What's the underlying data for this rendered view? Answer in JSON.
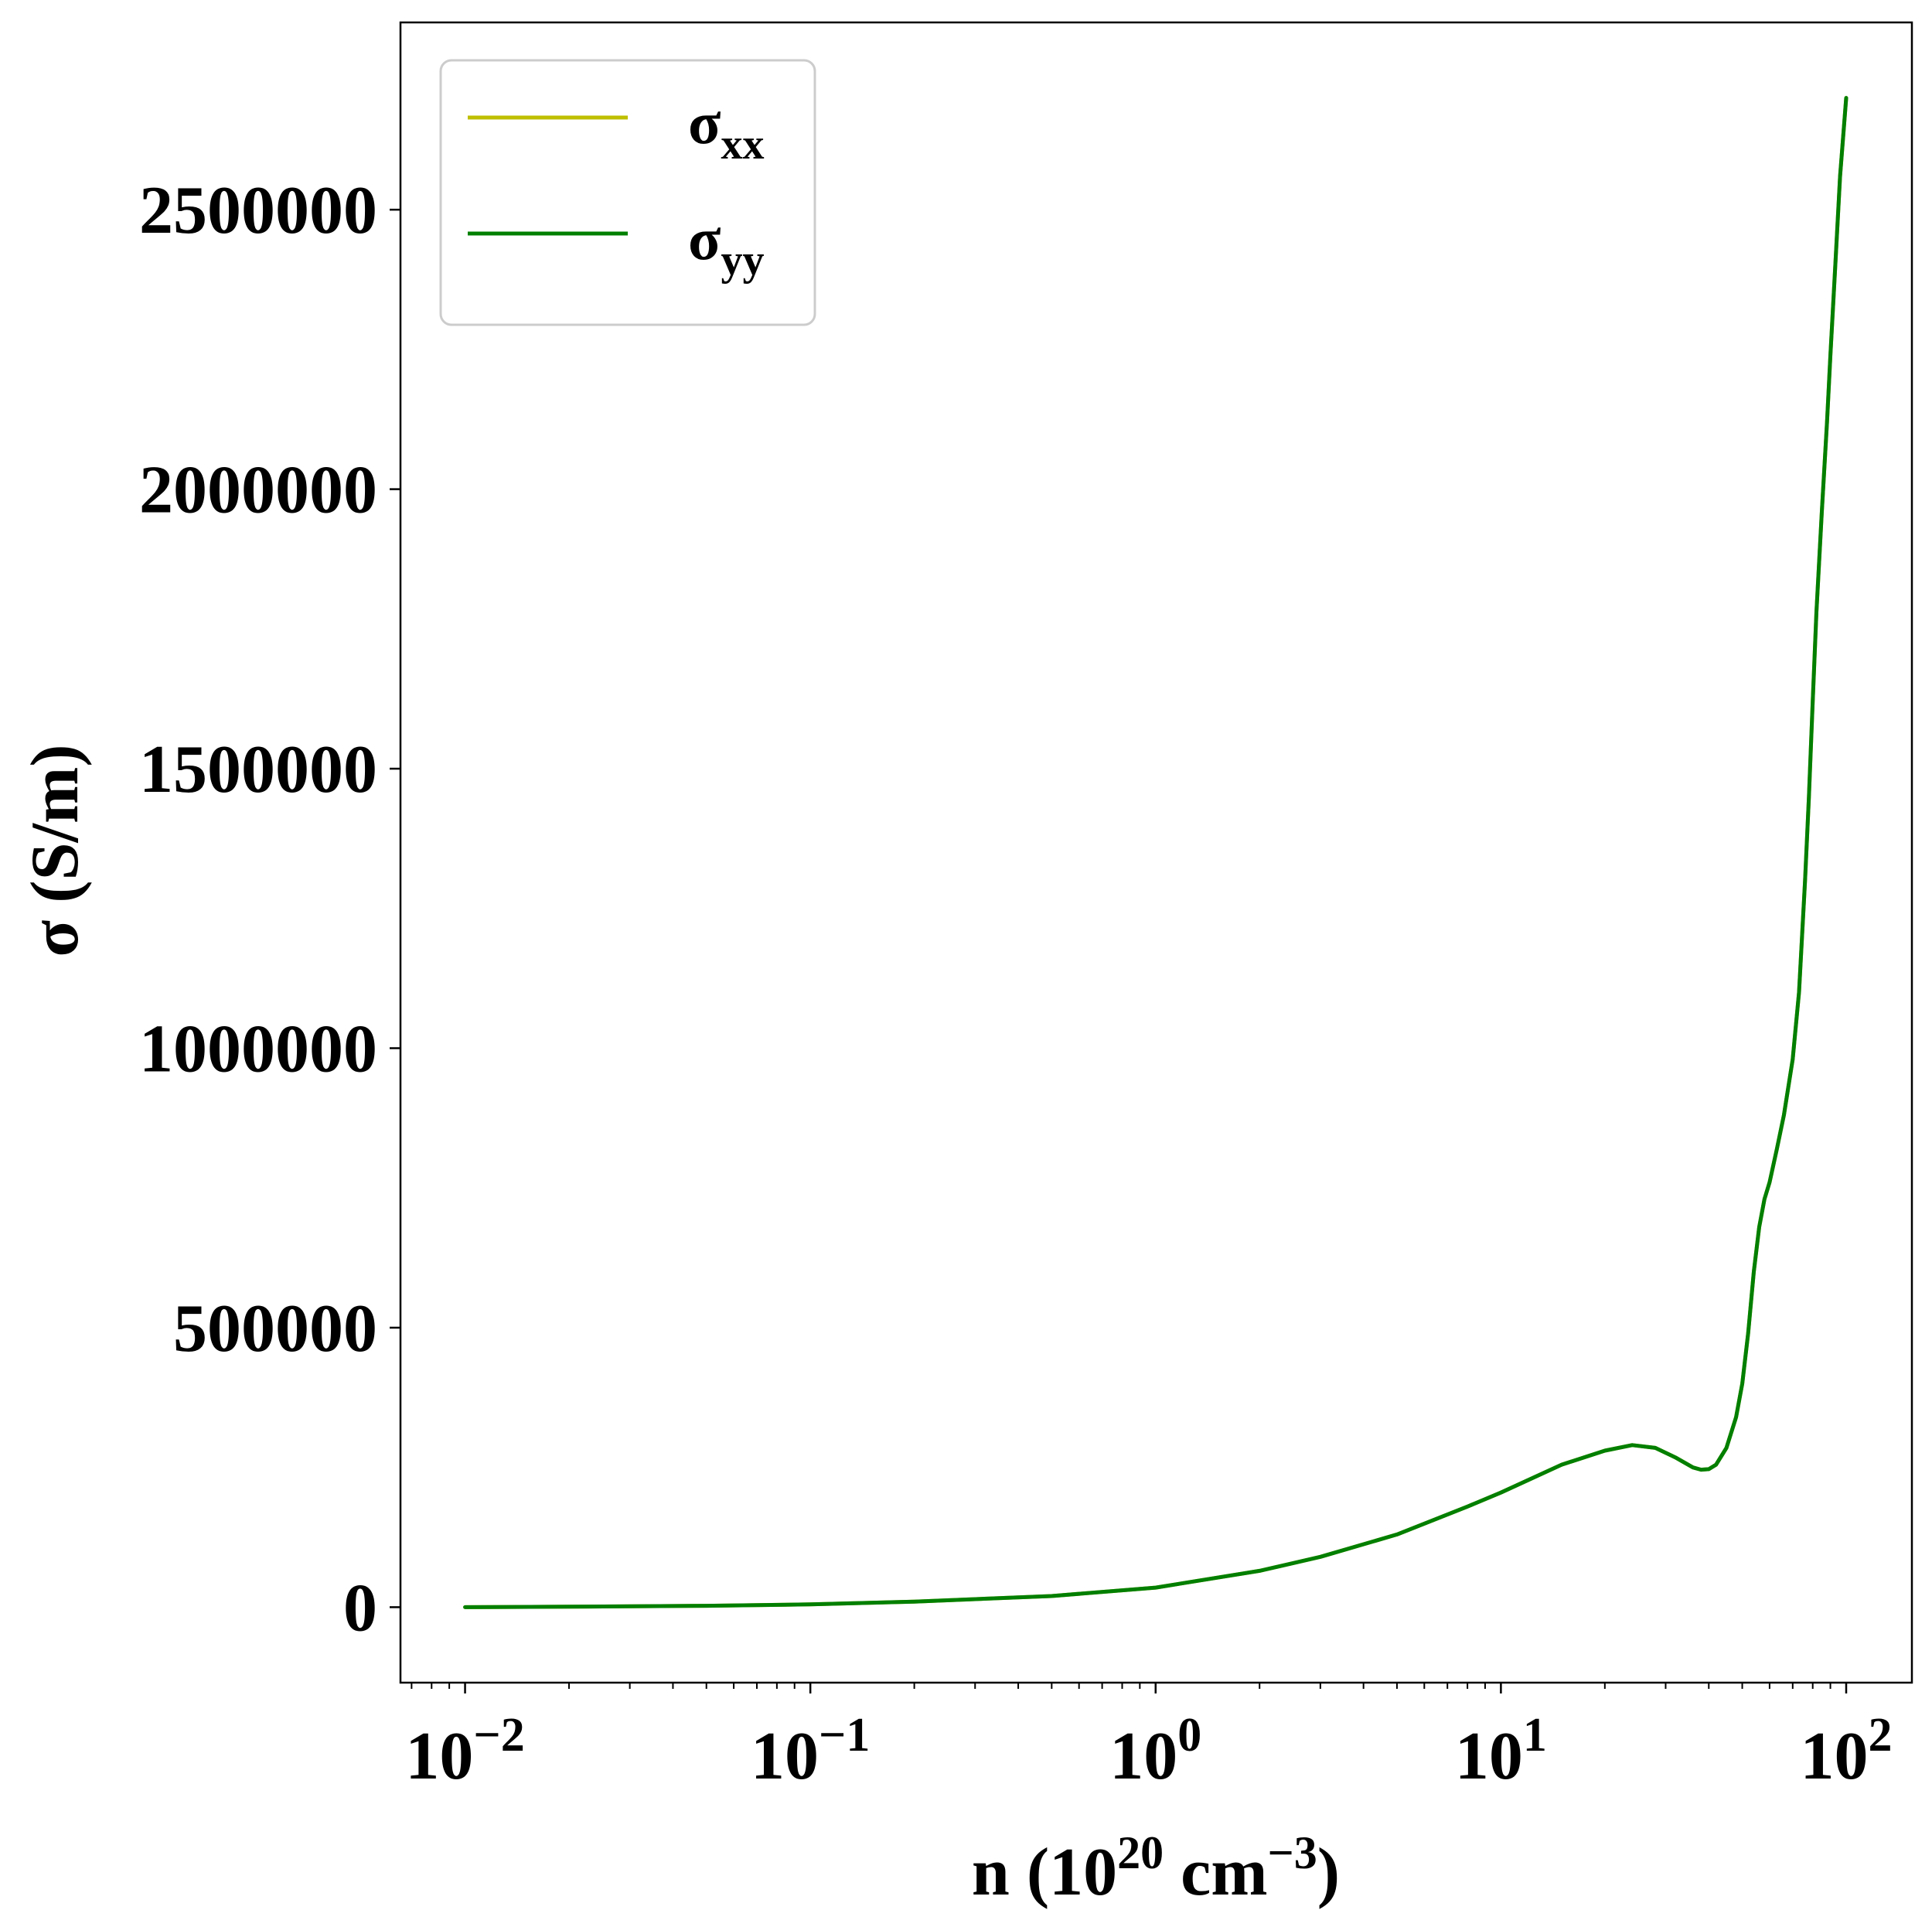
{
  "chart_data": {
    "type": "line",
    "xlabel": {
      "base": "n (10",
      "sup1": "20",
      "mid": " cm",
      "sup2": "−3",
      "end": ")"
    },
    "ylabel": "σ (S/m)",
    "xscale": "log",
    "xlim": [
      0.0065,
      155
    ],
    "ylim": [
      -135000,
      2835000
    ],
    "grid": false,
    "legend": "top-left",
    "y_ticks": [
      0,
      500000,
      1000000,
      1500000,
      2000000,
      2500000
    ],
    "y_tick_labels": [
      "0",
      "500000",
      "1000000",
      "1500000",
      "2000000",
      "2500000"
    ],
    "x_ticks": [
      0.01,
      0.1,
      1,
      10,
      100
    ],
    "x_tick_labels": [
      {
        "base": "10",
        "exp": "−2"
      },
      {
        "base": "10",
        "exp": "−1"
      },
      {
        "base": "10",
        "exp": "0"
      },
      {
        "base": "10",
        "exp": "1"
      },
      {
        "base": "10",
        "exp": "2"
      }
    ],
    "series": [
      {
        "name": "σ",
        "sub": "xx",
        "color": "#bfbf00",
        "x": [
          0.01,
          0.02,
          0.05,
          0.1,
          0.2,
          0.5,
          1,
          2,
          3,
          5,
          8,
          10,
          15,
          20,
          24,
          28,
          32,
          36,
          38,
          40,
          42,
          45,
          48,
          50,
          52,
          54,
          56,
          58,
          60,
          63,
          66,
          70,
          73,
          76,
          78,
          80,
          82,
          85,
          88,
          90,
          93,
          96,
          100
        ],
        "y": [
          0,
          800,
          2500,
          5000,
          10000,
          20000,
          35000,
          65000,
          90000,
          130000,
          180000,
          205000,
          255000,
          280000,
          290000,
          285000,
          268000,
          250000,
          246000,
          247000,
          255000,
          285000,
          340000,
          400000,
          490000,
          600000,
          680000,
          730000,
          760000,
          820000,
          880000,
          980000,
          1100000,
          1300000,
          1450000,
          1620000,
          1780000,
          1960000,
          2120000,
          2240000,
          2400000,
          2560000,
          2700000
        ]
      },
      {
        "name": "σ",
        "sub": "yy",
        "color": "#007f00",
        "x": [
          0.01,
          0.02,
          0.05,
          0.1,
          0.2,
          0.5,
          1,
          2,
          3,
          5,
          8,
          10,
          15,
          20,
          24,
          28,
          32,
          36,
          38,
          40,
          42,
          45,
          48,
          50,
          52,
          54,
          56,
          58,
          60,
          63,
          66,
          70,
          73,
          76,
          78,
          80,
          82,
          85,
          88,
          90,
          93,
          96,
          100
        ],
        "y": [
          0,
          800,
          2500,
          5000,
          10000,
          20000,
          35000,
          65000,
          90000,
          130000,
          180000,
          205000,
          255000,
          280000,
          290000,
          285000,
          268000,
          250000,
          246000,
          247000,
          255000,
          285000,
          340000,
          400000,
          490000,
          600000,
          680000,
          730000,
          760000,
          820000,
          880000,
          980000,
          1100000,
          1300000,
          1450000,
          1620000,
          1780000,
          1960000,
          2120000,
          2240000,
          2400000,
          2560000,
          2700000
        ]
      }
    ]
  }
}
